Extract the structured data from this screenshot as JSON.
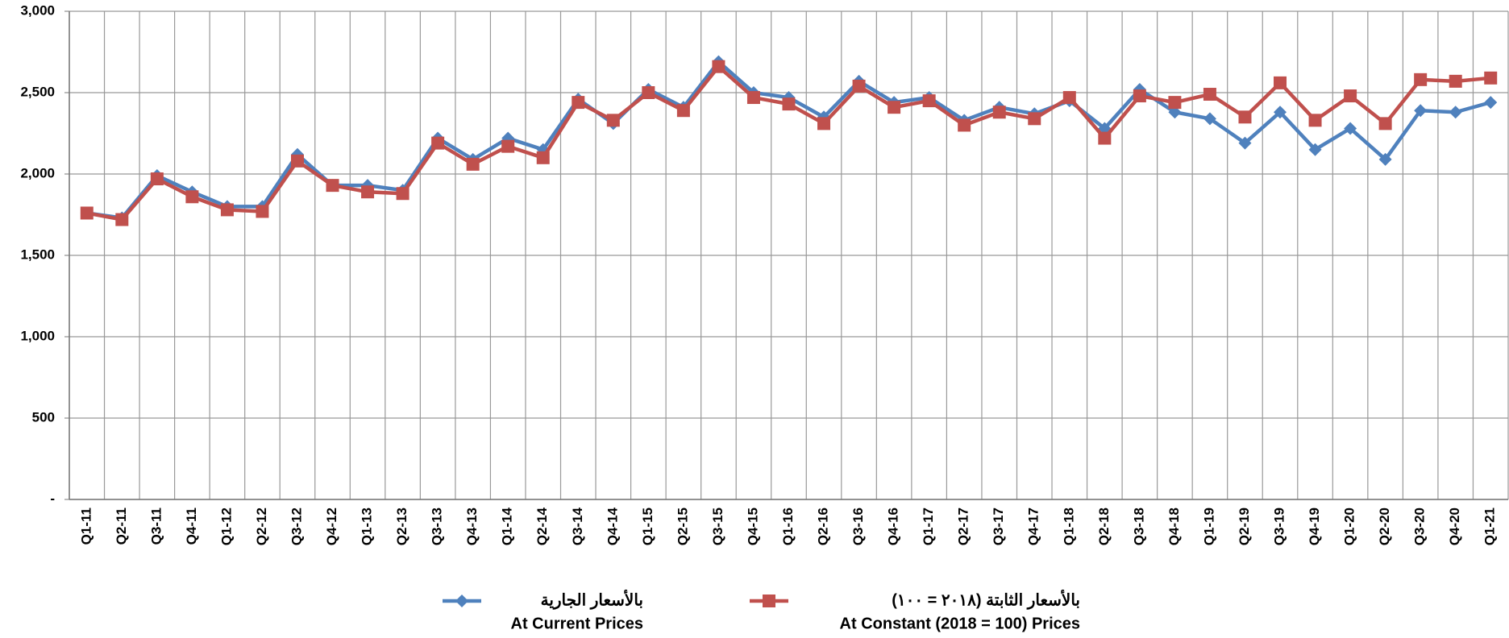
{
  "chart_data": {
    "type": "line",
    "categories": [
      "Q1-11",
      "Q2-11",
      "Q3-11",
      "Q4-11",
      "Q1-12",
      "Q2-12",
      "Q3-12",
      "Q4-12",
      "Q1-13",
      "Q2-13",
      "Q3-13",
      "Q4-13",
      "Q1-14",
      "Q2-14",
      "Q3-14",
      "Q4-14",
      "Q1-15",
      "Q2-15",
      "Q3-15",
      "Q4-15",
      "Q1-16",
      "Q2-16",
      "Q3-16",
      "Q4-16",
      "Q1-17",
      "Q2-17",
      "Q3-17",
      "Q4-17",
      "Q1-18",
      "Q2-18",
      "Q3-18",
      "Q4-18",
      "Q1-19",
      "Q2-19",
      "Q3-19",
      "Q4-19",
      "Q1-20",
      "Q2-20",
      "Q3-20",
      "Q4-20",
      "Q1-21"
    ],
    "series": [
      {
        "name": "At Current Prices",
        "name_ar": "بالأسعار الجارية",
        "color": "#4f81bd",
        "marker": "diamond",
        "values": [
          1760,
          1730,
          1990,
          1890,
          1800,
          1800,
          2120,
          1930,
          1930,
          1900,
          2220,
          2090,
          2220,
          2150,
          2460,
          2310,
          2520,
          2410,
          2690,
          2500,
          2470,
          2350,
          2570,
          2440,
          2470,
          2330,
          2410,
          2370,
          2450,
          2280,
          2520,
          2380,
          2340,
          2190,
          2380,
          2150,
          2280,
          2090,
          2390,
          2380,
          2440
        ]
      },
      {
        "name": "At Constant (2018 = 100) Prices",
        "name_ar": "بالأسعار الثابتة (٢٠١٨ = ١٠٠)",
        "color": "#c0504d",
        "marker": "square",
        "values": [
          1760,
          1720,
          1970,
          1860,
          1780,
          1770,
          2080,
          1930,
          1890,
          1880,
          2190,
          2060,
          2170,
          2100,
          2440,
          2330,
          2500,
          2390,
          2660,
          2470,
          2430,
          2310,
          2540,
          2410,
          2450,
          2300,
          2380,
          2340,
          2470,
          2220,
          2480,
          2440,
          2490,
          2350,
          2560,
          2330,
          2480,
          2310,
          2580,
          2570,
          2590
        ]
      }
    ],
    "ylim": [
      0,
      3000
    ],
    "yticks": [
      {
        "value": 0,
        "label": "-"
      },
      500,
      {
        "value": 1000,
        "label": "1,000"
      },
      {
        "value": 1500,
        "label": "1,500"
      },
      {
        "value": 2000,
        "label": "2,000"
      },
      {
        "value": 2500,
        "label": "2,500"
      },
      {
        "value": 3000,
        "label": "3,000"
      }
    ],
    "grid": true
  }
}
